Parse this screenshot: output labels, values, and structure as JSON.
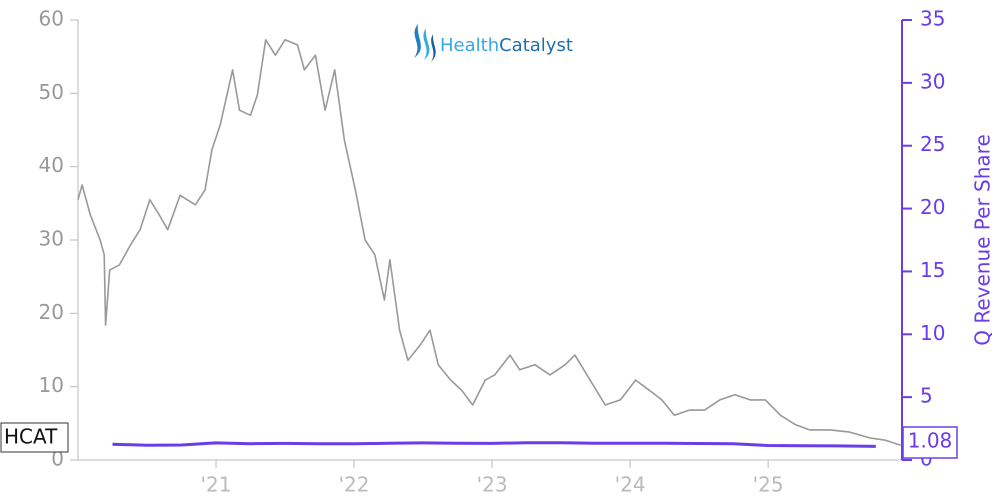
{
  "chart_data": {
    "type": "line",
    "logo": [
      "Health",
      "Catalyst"
    ],
    "xlim": [
      2020,
      2025.97
    ],
    "xticks": [
      {
        "value": 2021,
        "label": "'21"
      },
      {
        "value": 2022,
        "label": "'22"
      },
      {
        "value": 2023,
        "label": "'23"
      },
      {
        "value": 2024,
        "label": "'24"
      },
      {
        "value": 2025,
        "label": "'25"
      }
    ],
    "ylim": [
      0,
      60
    ],
    "yticks": [
      0,
      10,
      20,
      30,
      40,
      50,
      60
    ],
    "y2lim": [
      0,
      35
    ],
    "y2ticks": [
      0,
      5,
      10,
      15,
      20,
      25,
      30,
      35
    ],
    "grid": false,
    "series": [
      {
        "name": "HCAT",
        "color": "#999999",
        "x": [
          2020.0,
          2020.03,
          2020.09,
          2020.16,
          2020.19,
          2020.2,
          2020.23,
          2020.3,
          2020.38,
          2020.45,
          2020.52,
          2020.59,
          2020.65,
          2020.74,
          2020.85,
          2020.92,
          2020.97,
          2021.03,
          2021.12,
          2021.17,
          2021.25,
          2021.3,
          2021.36,
          2021.43,
          2021.5,
          2021.59,
          2021.64,
          2021.72,
          2021.79,
          2021.86,
          2021.93,
          2022.01,
          2022.08,
          2022.15,
          2022.22,
          2022.26,
          2022.33,
          2022.39,
          2022.48,
          2022.55,
          2022.61,
          2022.7,
          2022.78,
          2022.86,
          2022.95,
          2023.02,
          2023.13,
          2023.2,
          2023.31,
          2023.42,
          2023.53,
          2023.6,
          2023.71,
          2023.82,
          2023.93,
          2024.04,
          2024.14,
          2024.23,
          2024.32,
          2024.43,
          2024.54,
          2024.65,
          2024.76,
          2024.87,
          2024.98,
          2025.09,
          2025.2,
          2025.3,
          2025.45,
          2025.59,
          2025.74,
          2025.85,
          2025.96
        ],
        "values": [
          35.5,
          37.5,
          33.4,
          30,
          28,
          18.4,
          25.9,
          26.6,
          29.3,
          31.4,
          35.5,
          33.4,
          31.4,
          36.1,
          34.8,
          36.8,
          42.3,
          45.7,
          53.2,
          47.7,
          47,
          49.8,
          57.3,
          55.2,
          57.3,
          56.6,
          53.2,
          55.2,
          47.7,
          53.2,
          43.6,
          36.8,
          30,
          28,
          21.8,
          27.3,
          17.7,
          13.6,
          15.7,
          17.7,
          13,
          10.9,
          9.5,
          7.5,
          10.9,
          11.6,
          14.3,
          12.3,
          13,
          11.6,
          13,
          14.3,
          10.9,
          7.5,
          8.2,
          10.9,
          9.5,
          8.2,
          6.1,
          6.8,
          6.8,
          8.2,
          8.9,
          8.2,
          8.2,
          6.1,
          4.8,
          4.1,
          4.1,
          3.8,
          3,
          2.7,
          2
        ]
      },
      {
        "name": "Q Revenue Per Share",
        "color": "#6a3de8",
        "axis": "y2",
        "x": [
          2020.25,
          2020.5,
          2020.75,
          2021.0,
          2021.25,
          2021.5,
          2021.75,
          2022.0,
          2022.25,
          2022.5,
          2022.75,
          2023.0,
          2023.25,
          2023.5,
          2023.75,
          2024.0,
          2024.25,
          2024.5,
          2024.75,
          2025.0,
          2025.25,
          2025.5,
          2025.78
        ],
        "values": [
          1.25,
          1.18,
          1.19,
          1.36,
          1.3,
          1.32,
          1.29,
          1.3,
          1.33,
          1.36,
          1.34,
          1.32,
          1.38,
          1.37,
          1.34,
          1.34,
          1.34,
          1.31,
          1.29,
          1.15,
          1.14,
          1.12,
          1.08
        ]
      }
    ]
  }
}
